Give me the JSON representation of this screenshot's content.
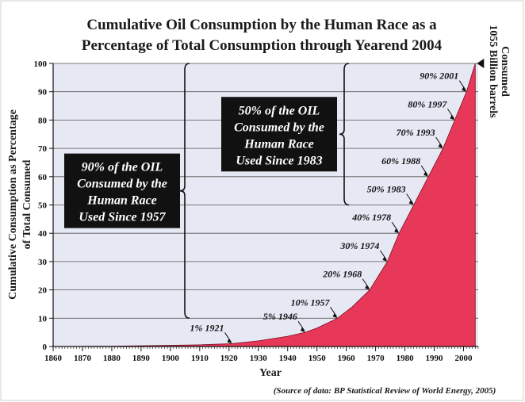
{
  "chart_data": {
    "type": "area",
    "title_lines": [
      "Cumulative Oil Consumption by the Human Race as a",
      "Percentage of Total Consumption through Yearend 2004"
    ],
    "xlabel": "Year",
    "ylabel_lines": [
      "Cumulative Consumption as Percentage",
      "of Total Consumed"
    ],
    "source": "(Source of data: BP Statistical Review of World Energy, 2005)",
    "xlim": [
      1860,
      2005
    ],
    "ylim": [
      0,
      100
    ],
    "x_ticks": [
      1860,
      1870,
      1880,
      1890,
      1900,
      1910,
      1920,
      1930,
      1940,
      1950,
      1960,
      1970,
      1980,
      1990,
      2000
    ],
    "y_ticks": [
      0,
      10,
      20,
      30,
      40,
      50,
      60,
      70,
      80,
      90,
      100
    ],
    "grid": "horizontal",
    "fill_color": "#e8385a",
    "plot_bg": "#e6e8f4",
    "series": [
      {
        "x": [
          1860,
          1880,
          1900,
          1910,
          1921,
          1930,
          1940,
          1946,
          1950,
          1957,
          1962,
          1968,
          1971,
          1974,
          1978,
          1983,
          1988,
          1993,
          1997,
          2001,
          2004
        ],
        "y": [
          0,
          0.1,
          0.4,
          0.6,
          1,
          2,
          3.6,
          5,
          6.5,
          10,
          14,
          20,
          25,
          30,
          40,
          50,
          60,
          70,
          80,
          90,
          100
        ]
      }
    ],
    "annotations": [
      {
        "text": "1% 1921",
        "x": 1921,
        "y": 1
      },
      {
        "text": "5% 1946",
        "x": 1946,
        "y": 5
      },
      {
        "text": "10% 1957",
        "x": 1957,
        "y": 10
      },
      {
        "text": "20% 1968",
        "x": 1968,
        "y": 20
      },
      {
        "text": "30% 1974",
        "x": 1974,
        "y": 30
      },
      {
        "text": "40% 1978",
        "x": 1978,
        "y": 40
      },
      {
        "text": "50% 1983",
        "x": 1983,
        "y": 50
      },
      {
        "text": "60% 1988",
        "x": 1988,
        "y": 60
      },
      {
        "text": "70% 1993",
        "x": 1993,
        "y": 70
      },
      {
        "text": "80% 1997",
        "x": 1997,
        "y": 80
      },
      {
        "text": "90% 2001",
        "x": 2001,
        "y": 90
      }
    ],
    "callouts": [
      {
        "lines": [
          "90% of the OIL",
          "Consumed by the",
          "Human Race",
          "Used Since 1957"
        ],
        "y_from": 10,
        "y_to": 100
      },
      {
        "lines": [
          "50% of the OIL",
          "Consumed by the",
          "Human Race",
          "Used Since 1983"
        ],
        "y_from": 50,
        "y_to": 100
      }
    ],
    "endpoint_label_lines": [
      "1055 Billion barrels",
      "Consumed"
    ]
  }
}
